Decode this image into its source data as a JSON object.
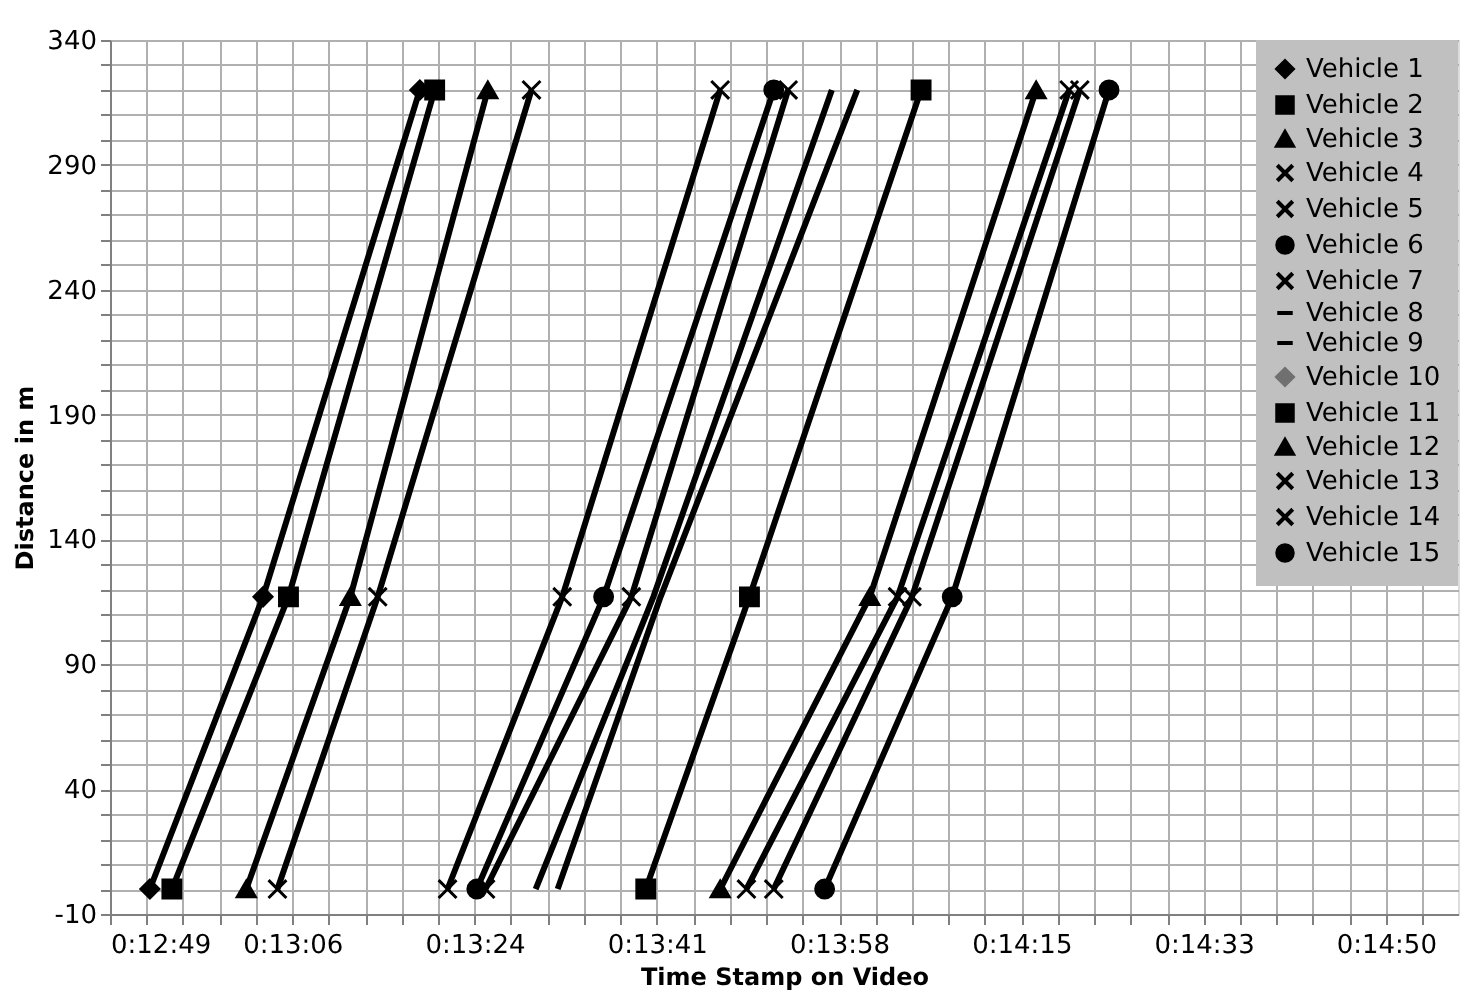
{
  "chart_data": {
    "type": "line",
    "xlabel": "Time Stamp on Video",
    "ylabel": "Distance in m",
    "xlim": [
      0.2136,
      0.2491
    ],
    "ylim": [
      -10,
      340
    ],
    "xticks": [
      {
        "value": 0.2136,
        "label": "0:12:49"
      },
      {
        "value": 0.2184,
        "label": "0:13:06"
      },
      {
        "value": 0.2232,
        "label": "0:13:24"
      },
      {
        "value": 0.228,
        "label": "0:13:41"
      },
      {
        "value": 0.2328,
        "label": "0:13:58"
      },
      {
        "value": 0.2376,
        "label": "0:14:15"
      },
      {
        "value": 0.2424,
        "label": "0:14:33"
      },
      {
        "value": 0.2472,
        "label": "0:14:50"
      }
    ],
    "yticks": [
      -10,
      40,
      90,
      140,
      190,
      240,
      290,
      340
    ],
    "grid": true,
    "legend": "top right",
    "line_style": "solid",
    "series": [
      {
        "name": "Vehicle 1",
        "color": "#000000",
        "marker": "diamond",
        "x": [
          0.21465,
          0.21763,
          0.22176
        ],
        "values": [
          0,
          117,
          320
        ]
      },
      {
        "name": "Vehicle 2",
        "color": "#000000",
        "marker": "square",
        "x": [
          0.21523,
          0.2183,
          0.22215
        ],
        "values": [
          0,
          117,
          320
        ]
      },
      {
        "name": "Vehicle 3",
        "color": "#000000",
        "marker": "triangle",
        "x": [
          0.21719,
          0.21993,
          0.22355
        ],
        "values": [
          0,
          117,
          320
        ]
      },
      {
        "name": "Vehicle 4",
        "color": "#000000",
        "marker": "cross",
        "x": [
          0.21801,
          0.22065,
          0.2247
        ],
        "values": [
          0,
          117,
          320
        ]
      },
      {
        "name": "Vehicle 5",
        "color": "#000000",
        "marker": "cross",
        "x": [
          0.22249,
          0.22551,
          0.22967
        ],
        "values": [
          0,
          117,
          320
        ]
      },
      {
        "name": "Vehicle 6",
        "color": "#000000",
        "marker": "circle",
        "x": [
          0.22326,
          0.2266,
          0.23108
        ],
        "values": [
          0,
          117,
          320
        ]
      },
      {
        "name": "Vehicle 7",
        "color": "#000000",
        "marker": "cross",
        "x": [
          0.22349,
          0.22733,
          0.23146
        ],
        "values": [
          0,
          117,
          320
        ]
      },
      {
        "name": "Vehicle 8",
        "color": "#000000",
        "marker": "none",
        "x": [
          0.22481,
          0.22791,
          0.23261
        ],
        "values": [
          0,
          117,
          320
        ]
      },
      {
        "name": "Vehicle 9",
        "color": "#000000",
        "marker": "none",
        "x": [
          0.22539,
          0.2281,
          0.23328
        ],
        "values": [
          0,
          117,
          320
        ]
      },
      {
        "name": "Vehicle 10",
        "color": "#707070",
        "marker": "diamond"
      },
      {
        "name": "Vehicle 11",
        "color": "#000000",
        "marker": "square",
        "x": [
          0.22771,
          0.23044,
          0.23496
        ],
        "values": [
          0,
          117,
          320
        ]
      },
      {
        "name": "Vehicle 12",
        "color": "#000000",
        "marker": "triangle",
        "x": [
          0.22967,
          0.23361,
          0.23799
        ],
        "values": [
          0,
          117,
          320
        ]
      },
      {
        "name": "Vehicle 13",
        "color": "#000000",
        "marker": "cross",
        "x": [
          0.23036,
          0.23434,
          0.23886
        ],
        "values": [
          0,
          117,
          320
        ]
      },
      {
        "name": "Vehicle 14",
        "color": "#000000",
        "marker": "cross",
        "x": [
          0.23108,
          0.23472,
          0.23914
        ],
        "values": [
          0,
          117,
          320
        ]
      },
      {
        "name": "Vehicle 15",
        "color": "#000000",
        "marker": "circle",
        "x": [
          0.23242,
          0.23578,
          0.23991
        ],
        "values": [
          0,
          117,
          320
        ]
      }
    ]
  }
}
